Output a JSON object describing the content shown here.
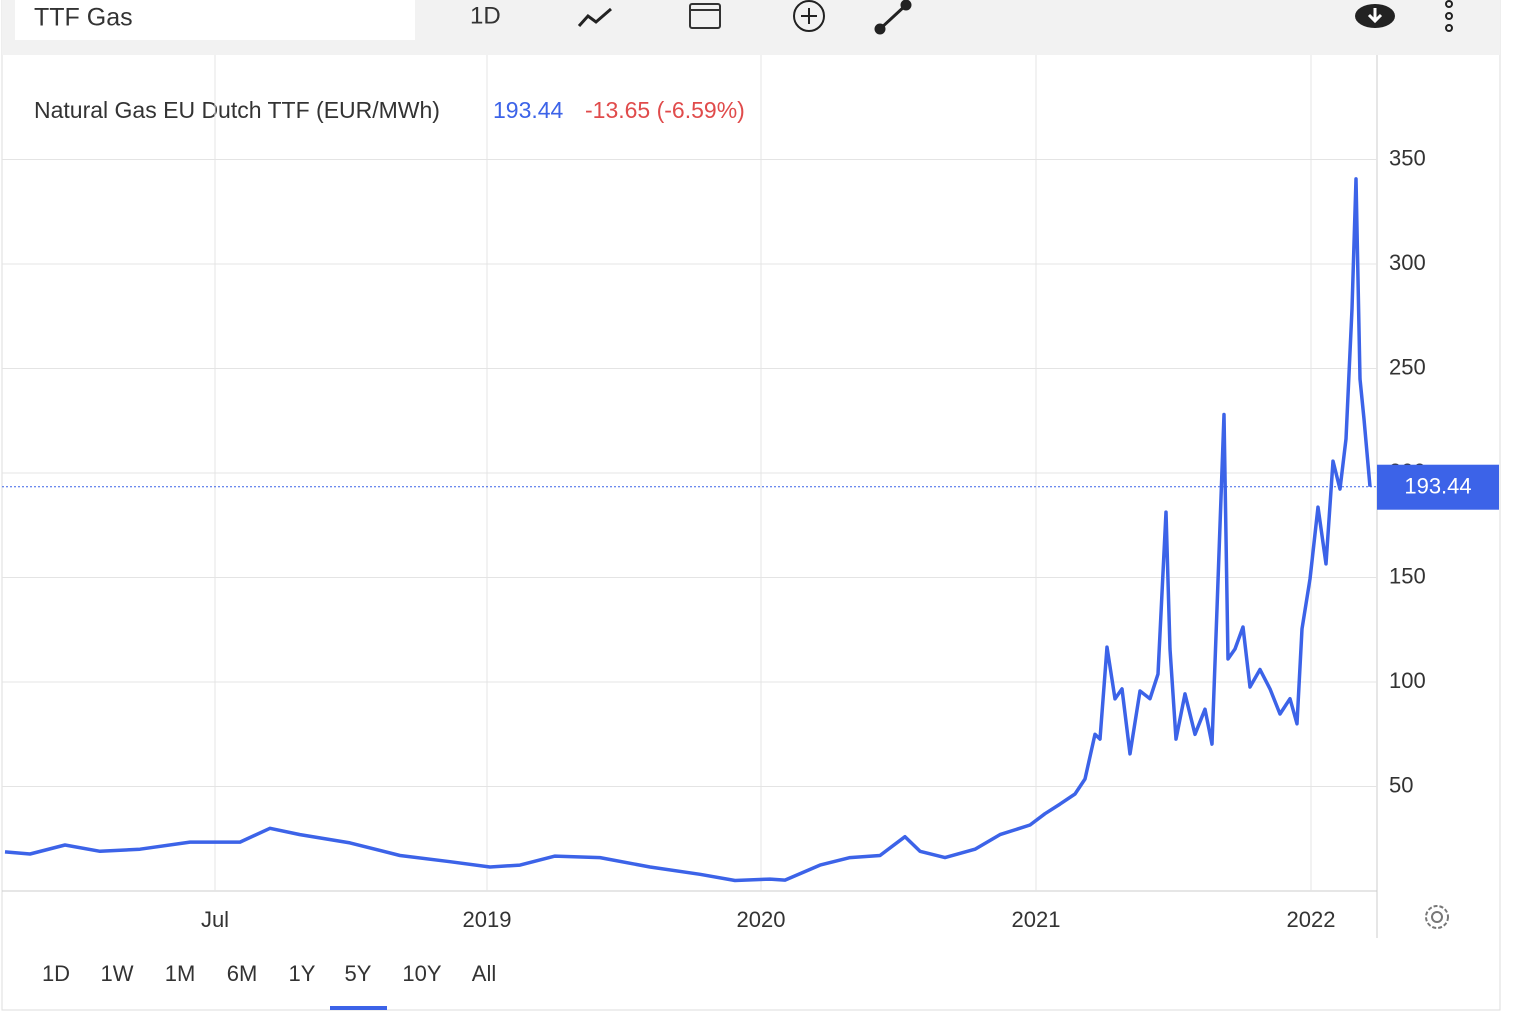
{
  "toolbar": {
    "symbol": "TTF Gas",
    "interval": "1D"
  },
  "ranges": [
    "1D",
    "1W",
    "1M",
    "6M",
    "1Y",
    "5Y",
    "10Y",
    "All"
  ],
  "active_range": 5,
  "chart_data": {
    "type": "line",
    "title": "Natural Gas EU Dutch TTF (EUR/MWh)",
    "last_price": 193.44,
    "change": "-13.65 (-6.59%)",
    "xlim": [
      0,
      137.2
    ],
    "xticks": [
      {
        "value": 21,
        "label": "Jul"
      },
      {
        "value": 48.2,
        "label": "2019"
      },
      {
        "value": 75.6,
        "label": "2020"
      },
      {
        "value": 103.1,
        "label": "2021"
      },
      {
        "value": 130.6,
        "label": "2022"
      }
    ],
    "ylim": [
      0,
      400
    ],
    "yticks": [
      50,
      100,
      150,
      200,
      250,
      300,
      350
    ],
    "grid": true,
    "series": [
      {
        "name": "Natural Gas EU Dutch TTF",
        "color": "#3c63e8",
        "x": [
          0,
          2.5,
          6,
          9.5,
          13.5,
          18.5,
          23.5,
          26.5,
          29.5,
          34.5,
          39.5,
          44.5,
          48.5,
          51.5,
          55,
          59.5,
          64.5,
          69.5,
          73,
          76.5,
          78,
          81.5,
          84.5,
          87.5,
          90,
          91.5,
          94,
          97,
          99.5,
          102.5,
          104,
          105.5,
          107,
          108,
          109,
          109.5,
          110.2,
          111,
          111.7,
          112.5,
          113.5,
          114.5,
          115.3,
          116.1,
          116.5,
          117.1,
          118,
          119,
          120,
          120.7,
          121.2,
          121.9,
          122.3,
          123,
          123.8,
          124.5,
          125.5,
          126.5,
          127.5,
          128.5,
          129.2,
          129.7,
          130.5,
          131.3,
          132.1,
          132.8,
          133.5,
          134.1,
          134.7,
          135.1,
          135.5,
          135.9,
          136.5
        ],
        "values": [
          18.7,
          17.7,
          22,
          19,
          20,
          23.4,
          23.4,
          30,
          27,
          23,
          17,
          14,
          11.5,
          12.4,
          16.7,
          16,
          11.5,
          8,
          5,
          5.7,
          5.2,
          12.4,
          16,
          17,
          26,
          19,
          16,
          20,
          27,
          31.6,
          37,
          41.6,
          46.4,
          53.6,
          75,
          72.7,
          116.7,
          91.9,
          96.7,
          65.6,
          95.7,
          92,
          103.8,
          181.3,
          115.8,
          72.7,
          94.3,
          75,
          87,
          70.3,
          135,
          228,
          111,
          115.8,
          126.3,
          97.6,
          106,
          96.7,
          84.7,
          92,
          80,
          125.4,
          149.3,
          183.7,
          156.5,
          205.7,
          192.3,
          216.3,
          278.5,
          340.7,
          245,
          225.8,
          193.44
        ]
      }
    ]
  }
}
